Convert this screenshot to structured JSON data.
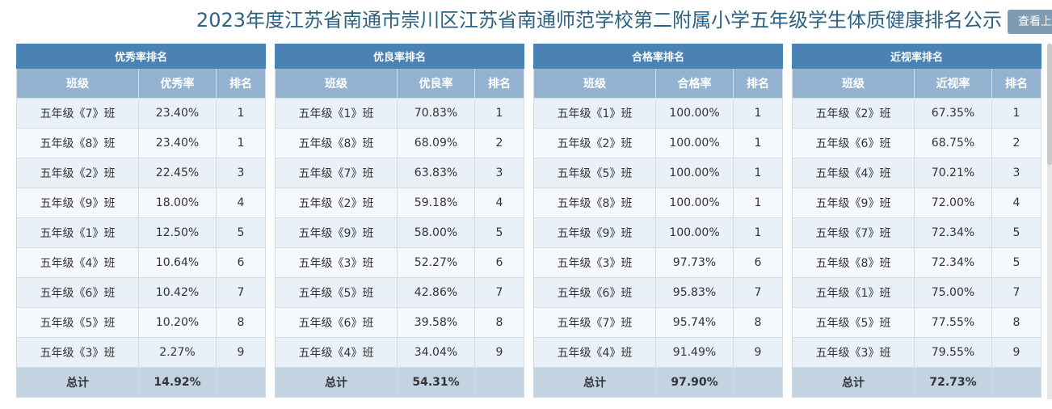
{
  "page": {
    "title": "2023年度江苏省南通市崇川区江苏省南通师范学校第二附属小学五年级学生体质健康排名公示",
    "view_button": "查看上"
  },
  "panels": [
    {
      "title": "优秀率排名",
      "headers": [
        "班级",
        "优秀率",
        "排名"
      ],
      "rows": [
        [
          "五年级《7》班",
          "23.40%",
          "1"
        ],
        [
          "五年级《8》班",
          "23.40%",
          "1"
        ],
        [
          "五年级《2》班",
          "22.45%",
          "3"
        ],
        [
          "五年级《9》班",
          "18.00%",
          "4"
        ],
        [
          "五年级《1》班",
          "12.50%",
          "5"
        ],
        [
          "五年级《4》班",
          "10.64%",
          "6"
        ],
        [
          "五年级《6》班",
          "10.42%",
          "7"
        ],
        [
          "五年级《5》班",
          "10.20%",
          "8"
        ],
        [
          "五年级《3》班",
          "2.27%",
          "9"
        ]
      ],
      "total": [
        "总计",
        "14.92%",
        ""
      ]
    },
    {
      "title": "优良率排名",
      "headers": [
        "班级",
        "优良率",
        "排名"
      ],
      "rows": [
        [
          "五年级《1》班",
          "70.83%",
          "1"
        ],
        [
          "五年级《8》班",
          "68.09%",
          "2"
        ],
        [
          "五年级《7》班",
          "63.83%",
          "3"
        ],
        [
          "五年级《2》班",
          "59.18%",
          "4"
        ],
        [
          "五年级《9》班",
          "58.00%",
          "5"
        ],
        [
          "五年级《3》班",
          "52.27%",
          "6"
        ],
        [
          "五年级《5》班",
          "42.86%",
          "7"
        ],
        [
          "五年级《6》班",
          "39.58%",
          "8"
        ],
        [
          "五年级《4》班",
          "34.04%",
          "9"
        ]
      ],
      "total": [
        "总计",
        "54.31%",
        ""
      ]
    },
    {
      "title": "合格率排名",
      "headers": [
        "班级",
        "合格率",
        "排名"
      ],
      "rows": [
        [
          "五年级《1》班",
          "100.00%",
          "1"
        ],
        [
          "五年级《2》班",
          "100.00%",
          "1"
        ],
        [
          "五年级《5》班",
          "100.00%",
          "1"
        ],
        [
          "五年级《8》班",
          "100.00%",
          "1"
        ],
        [
          "五年级《9》班",
          "100.00%",
          "1"
        ],
        [
          "五年级《3》班",
          "97.73%",
          "6"
        ],
        [
          "五年级《6》班",
          "95.83%",
          "7"
        ],
        [
          "五年级《7》班",
          "95.74%",
          "8"
        ],
        [
          "五年级《4》班",
          "91.49%",
          "9"
        ]
      ],
      "total": [
        "总计",
        "97.90%",
        ""
      ]
    },
    {
      "title": "近视率排名",
      "headers": [
        "班级",
        "近视率",
        "排名"
      ],
      "rows": [
        [
          "五年级《2》班",
          "67.35%",
          "1"
        ],
        [
          "五年级《6》班",
          "68.75%",
          "2"
        ],
        [
          "五年级《4》班",
          "70.21%",
          "3"
        ],
        [
          "五年级《9》班",
          "72.00%",
          "4"
        ],
        [
          "五年级《7》班",
          "72.34%",
          "5"
        ],
        [
          "五年级《8》班",
          "72.34%",
          "5"
        ],
        [
          "五年级《1》班",
          "75.00%",
          "7"
        ],
        [
          "五年级《5》班",
          "77.55%",
          "8"
        ],
        [
          "五年级《3》班",
          "79.55%",
          "9"
        ]
      ],
      "total": [
        "总计",
        "72.73%",
        ""
      ]
    }
  ]
}
